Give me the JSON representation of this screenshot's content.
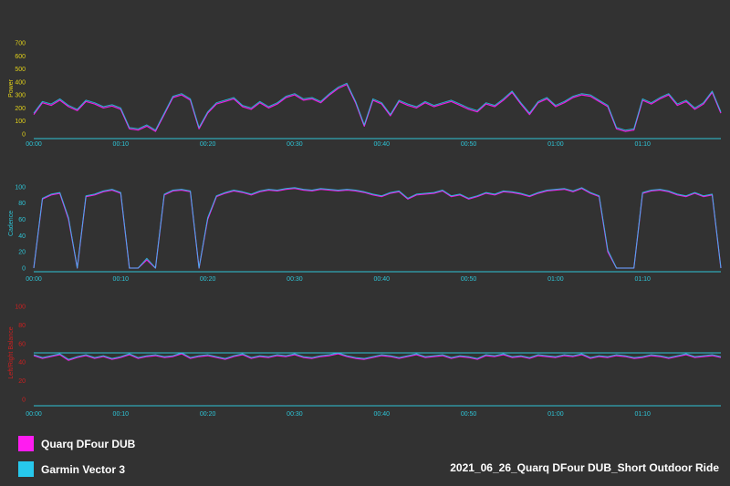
{
  "colors": {
    "background": "#323232",
    "quarq": "#ff1cf0",
    "garmin": "#27c8ec",
    "axis": "#2ec4d6"
  },
  "legend": [
    {
      "name": "Quarq DFour DUB",
      "color": "#ff1cf0"
    },
    {
      "name": "Garmin Vector 3",
      "color": "#27c8ec"
    }
  ],
  "title": "2021_06_26_Quarq DFour DUB_Short Outdoor Ride",
  "chart_data": [
    {
      "type": "line",
      "ylabel": "Power",
      "ylabel_color": "#e0d01a",
      "ylim": [
        0,
        700
      ],
      "yticks": [
        "0",
        "100",
        "200",
        "300",
        "400",
        "500",
        "600",
        "700"
      ],
      "xlim_minutes": [
        0,
        79
      ],
      "xticks": [
        "00:00",
        "00:10",
        "00:20",
        "00:30",
        "00:40",
        "00:50",
        "01:00",
        "01:10"
      ],
      "series": [
        {
          "name": "Quarq DFour DUB",
          "x": [
            0,
            1,
            2,
            3,
            4,
            5,
            6,
            7,
            8,
            9,
            10,
            11,
            12,
            13,
            14,
            15,
            16,
            17,
            18,
            19,
            20,
            21,
            22,
            23,
            24,
            25,
            26,
            27,
            28,
            29,
            30,
            31,
            32,
            33,
            34,
            35,
            36,
            37,
            38,
            39,
            40,
            41,
            42,
            43,
            44,
            45,
            46,
            47,
            48,
            49,
            50,
            51,
            52,
            53,
            54,
            55,
            56,
            57,
            58,
            59,
            60,
            61,
            62,
            63,
            64,
            65,
            66,
            67,
            68,
            69,
            70,
            71,
            72,
            73,
            74,
            75,
            76,
            77,
            78,
            79
          ],
          "values": [
            150,
            240,
            220,
            260,
            210,
            180,
            250,
            230,
            200,
            215,
            190,
            40,
            30,
            60,
            20,
            150,
            280,
            300,
            260,
            40,
            160,
            230,
            250,
            270,
            210,
            190,
            240,
            200,
            230,
            280,
            300,
            260,
            270,
            240,
            300,
            350,
            380,
            240,
            60,
            260,
            230,
            140,
            250,
            220,
            200,
            240,
            210,
            230,
            250,
            220,
            190,
            170,
            230,
            210,
            260,
            320,
            230,
            150,
            240,
            270,
            210,
            240,
            280,
            300,
            290,
            250,
            210,
            40,
            20,
            30,
            260,
            230,
            270,
            300,
            220,
            250,
            190,
            230,
            320,
            160
          ]
        },
        {
          "name": "Garmin Vector 3",
          "x": [
            0,
            1,
            2,
            3,
            4,
            5,
            6,
            7,
            8,
            9,
            10,
            11,
            12,
            13,
            14,
            15,
            16,
            17,
            18,
            19,
            20,
            21,
            22,
            23,
            24,
            25,
            26,
            27,
            28,
            29,
            30,
            31,
            32,
            33,
            34,
            35,
            36,
            37,
            38,
            39,
            40,
            41,
            42,
            43,
            44,
            45,
            46,
            47,
            48,
            49,
            50,
            51,
            52,
            53,
            54,
            55,
            56,
            57,
            58,
            59,
            60,
            61,
            62,
            63,
            64,
            65,
            66,
            67,
            68,
            69,
            70,
            71,
            72,
            73,
            74,
            75,
            76,
            77,
            78,
            79
          ],
          "values": [
            160,
            250,
            230,
            270,
            220,
            190,
            260,
            240,
            210,
            225,
            200,
            50,
            40,
            70,
            30,
            160,
            290,
            310,
            270,
            50,
            170,
            240,
            260,
            280,
            220,
            200,
            250,
            210,
            240,
            290,
            310,
            270,
            280,
            250,
            310,
            360,
            390,
            250,
            70,
            270,
            240,
            150,
            260,
            230,
            210,
            250,
            220,
            240,
            260,
            230,
            200,
            180,
            240,
            220,
            270,
            330,
            240,
            160,
            250,
            280,
            220,
            250,
            290,
            310,
            300,
            260,
            220,
            50,
            30,
            40,
            270,
            240,
            280,
            310,
            230,
            260,
            200,
            240,
            330,
            170
          ]
        }
      ]
    },
    {
      "type": "line",
      "ylabel": "Cadence",
      "ylabel_color": "#2ec4d6",
      "ylim": [
        0,
        110
      ],
      "yticks": [
        "0",
        "20",
        "40",
        "60",
        "80",
        "100"
      ],
      "xlim_minutes": [
        0,
        79
      ],
      "xticks": [
        "00:00",
        "00:10",
        "00:20",
        "00:30",
        "00:40",
        "00:50",
        "01:00",
        "01:10"
      ],
      "series": [
        {
          "name": "Quarq DFour DUB",
          "x": [
            0,
            1,
            2,
            3,
            4,
            5,
            6,
            7,
            8,
            9,
            10,
            11,
            12,
            13,
            14,
            15,
            16,
            17,
            18,
            19,
            20,
            21,
            22,
            23,
            24,
            25,
            26,
            27,
            28,
            29,
            30,
            31,
            32,
            33,
            34,
            35,
            36,
            37,
            38,
            39,
            40,
            41,
            42,
            43,
            44,
            45,
            46,
            47,
            48,
            49,
            50,
            51,
            52,
            53,
            54,
            55,
            56,
            57,
            58,
            59,
            60,
            61,
            62,
            63,
            64,
            65,
            66,
            67,
            68,
            69,
            70,
            71,
            72,
            73,
            74,
            75,
            76,
            77,
            78,
            79
          ],
          "values": [
            0,
            85,
            90,
            92,
            60,
            0,
            88,
            90,
            94,
            96,
            92,
            0,
            0,
            10,
            0,
            90,
            95,
            96,
            94,
            0,
            60,
            88,
            92,
            95,
            93,
            90,
            94,
            96,
            95,
            97,
            98,
            96,
            95,
            97,
            96,
            95,
            96,
            95,
            93,
            90,
            88,
            92,
            94,
            85,
            90,
            91,
            92,
            95,
            88,
            90,
            85,
            88,
            92,
            90,
            94,
            93,
            91,
            88,
            92,
            95,
            96,
            97,
            94,
            98,
            92,
            88,
            20,
            0,
            0,
            0,
            92,
            95,
            96,
            94,
            90,
            88,
            92,
            88,
            90,
            0
          ]
        },
        {
          "name": "Garmin Vector 3",
          "x": [
            0,
            1,
            2,
            3,
            4,
            5,
            6,
            7,
            8,
            9,
            10,
            11,
            12,
            13,
            14,
            15,
            16,
            17,
            18,
            19,
            20,
            21,
            22,
            23,
            24,
            25,
            26,
            27,
            28,
            29,
            30,
            31,
            32,
            33,
            34,
            35,
            36,
            37,
            38,
            39,
            40,
            41,
            42,
            43,
            44,
            45,
            46,
            47,
            48,
            49,
            50,
            51,
            52,
            53,
            54,
            55,
            56,
            57,
            58,
            59,
            60,
            61,
            62,
            63,
            64,
            65,
            66,
            67,
            68,
            69,
            70,
            71,
            72,
            73,
            74,
            75,
            76,
            77,
            78,
            79
          ],
          "values": [
            0,
            86,
            91,
            93,
            62,
            0,
            89,
            91,
            95,
            97,
            93,
            0,
            0,
            12,
            0,
            91,
            96,
            97,
            95,
            0,
            62,
            89,
            93,
            96,
            94,
            91,
            95,
            97,
            96,
            98,
            99,
            97,
            96,
            98,
            97,
            96,
            97,
            96,
            94,
            91,
            89,
            93,
            95,
            86,
            91,
            92,
            93,
            96,
            89,
            91,
            86,
            89,
            93,
            91,
            95,
            94,
            92,
            89,
            93,
            96,
            97,
            98,
            95,
            99,
            93,
            89,
            22,
            0,
            0,
            0,
            93,
            96,
            97,
            95,
            91,
            89,
            93,
            89,
            91,
            0
          ]
        }
      ]
    },
    {
      "type": "line",
      "ylabel": "Left/Right Balance",
      "ylabel_color": "#cc2020",
      "ylim": [
        0,
        100
      ],
      "yticks": [
        "0",
        "20",
        "40",
        "60",
        "80",
        "100"
      ],
      "reference_line": 50,
      "xlim_minutes": [
        0,
        79
      ],
      "xticks": [
        "00:00",
        "00:10",
        "00:20",
        "00:30",
        "00:40",
        "00:50",
        "01:00",
        "01:10"
      ],
      "series": [
        {
          "name": "Quarq DFour DUB",
          "x": [
            0,
            1,
            2,
            3,
            4,
            5,
            6,
            7,
            8,
            9,
            10,
            11,
            12,
            13,
            14,
            15,
            16,
            17,
            18,
            19,
            20,
            21,
            22,
            23,
            24,
            25,
            26,
            27,
            28,
            29,
            30,
            31,
            32,
            33,
            34,
            35,
            36,
            37,
            38,
            39,
            40,
            41,
            42,
            43,
            44,
            45,
            46,
            47,
            48,
            49,
            50,
            51,
            52,
            53,
            54,
            55,
            56,
            57,
            58,
            59,
            60,
            61,
            62,
            63,
            64,
            65,
            66,
            67,
            68,
            69,
            70,
            71,
            72,
            73,
            74,
            75,
            76,
            77,
            78,
            79
          ],
          "values": [
            47,
            44,
            46,
            48,
            42,
            45,
            47,
            44,
            46,
            43,
            45,
            48,
            44,
            46,
            47,
            45,
            46,
            49,
            44,
            46,
            47,
            45,
            43,
            46,
            48,
            44,
            46,
            45,
            47,
            46,
            48,
            45,
            44,
            46,
            47,
            49,
            46,
            44,
            43,
            45,
            47,
            46,
            44,
            46,
            48,
            45,
            46,
            47,
            44,
            46,
            45,
            43,
            47,
            46,
            48,
            45,
            46,
            44,
            47,
            46,
            45,
            47,
            46,
            48,
            44,
            46,
            45,
            47,
            46,
            44,
            45,
            47,
            46,
            44,
            46,
            48,
            45,
            46,
            47,
            45
          ]
        },
        {
          "name": "Garmin Vector 3",
          "x": [
            0,
            1,
            2,
            3,
            4,
            5,
            6,
            7,
            8,
            9,
            10,
            11,
            12,
            13,
            14,
            15,
            16,
            17,
            18,
            19,
            20,
            21,
            22,
            23,
            24,
            25,
            26,
            27,
            28,
            29,
            30,
            31,
            32,
            33,
            34,
            35,
            36,
            37,
            38,
            39,
            40,
            41,
            42,
            43,
            44,
            45,
            46,
            47,
            48,
            49,
            50,
            51,
            52,
            53,
            54,
            55,
            56,
            57,
            58,
            59,
            60,
            61,
            62,
            63,
            64,
            65,
            66,
            67,
            68,
            69,
            70,
            71,
            72,
            73,
            74,
            75,
            76,
            77,
            78,
            79
          ],
          "values": [
            48,
            45,
            47,
            49,
            43,
            46,
            48,
            45,
            47,
            44,
            46,
            49,
            45,
            47,
            48,
            46,
            47,
            50,
            45,
            47,
            48,
            46,
            44,
            47,
            49,
            45,
            47,
            46,
            48,
            47,
            49,
            46,
            45,
            47,
            48,
            50,
            47,
            45,
            44,
            46,
            48,
            47,
            45,
            47,
            49,
            46,
            47,
            48,
            45,
            47,
            46,
            44,
            48,
            47,
            49,
            46,
            47,
            45,
            48,
            47,
            46,
            48,
            47,
            49,
            45,
            47,
            46,
            48,
            47,
            45,
            46,
            48,
            47,
            45,
            47,
            49,
            46,
            47,
            48,
            46
          ]
        }
      ]
    }
  ]
}
